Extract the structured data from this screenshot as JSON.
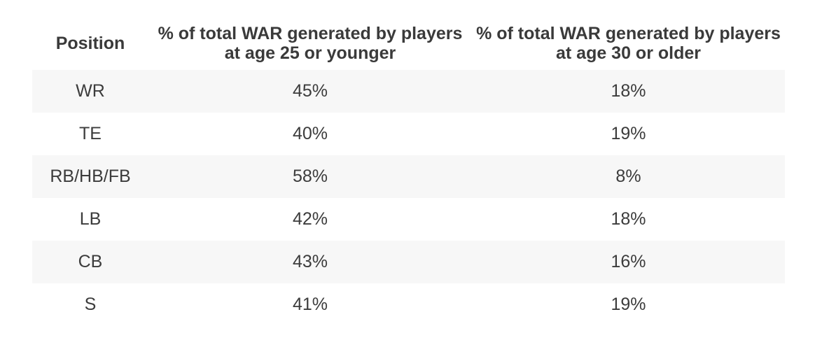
{
  "table": {
    "headers": {
      "position": "Position",
      "young": "% of total WAR generated by players at age 25 or younger",
      "old": "% of total WAR generated by players at age 30 or older"
    },
    "rows": [
      {
        "position": "WR",
        "young": "45%",
        "old": "18%"
      },
      {
        "position": "TE",
        "young": "40%",
        "old": "19%"
      },
      {
        "position": "RB/HB/FB",
        "young": "58%",
        "old": "8%"
      },
      {
        "position": "LB",
        "young": "42%",
        "old": "18%"
      },
      {
        "position": "CB",
        "young": "43%",
        "old": "16%"
      },
      {
        "position": "S",
        "young": "41%",
        "old": "19%"
      }
    ]
  },
  "colors": {
    "text": "#3c3c3c",
    "row_shade": "#f7f7f7",
    "background": "#ffffff"
  }
}
